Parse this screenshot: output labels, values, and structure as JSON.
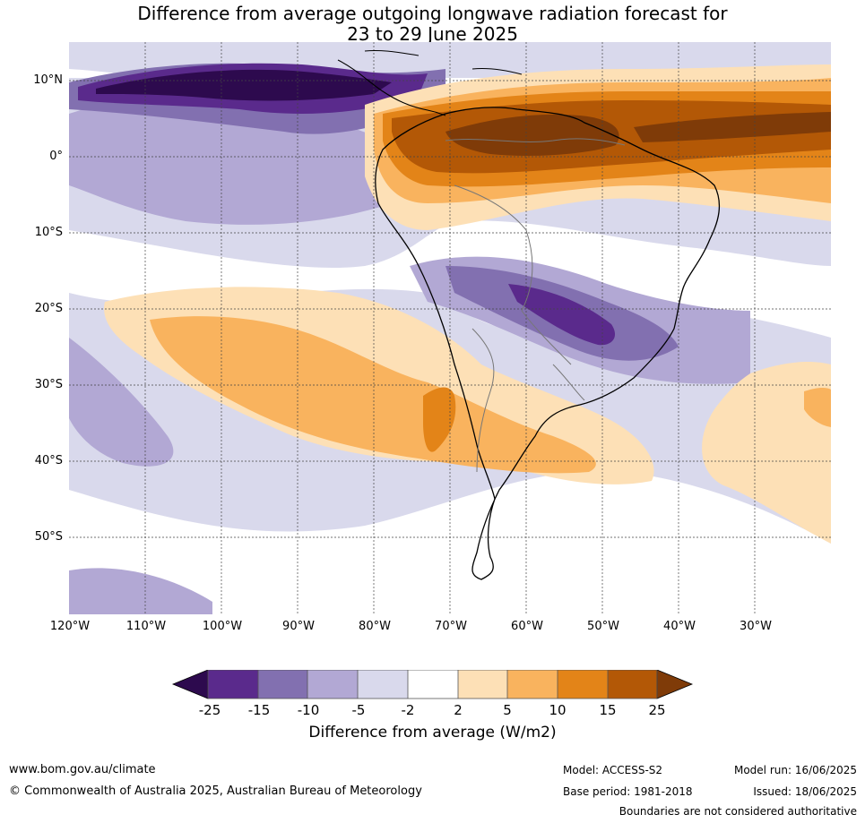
{
  "title": {
    "line1": "Difference from average outgoing longwave radiation forecast for",
    "line2": "23 to 29 June 2025"
  },
  "map": {
    "lat_labels": [
      "10°N",
      "0°",
      "10°S",
      "20°S",
      "30°S",
      "40°S",
      "50°S"
    ],
    "lon_labels": [
      "120°W",
      "110°W",
      "100°W",
      "90°W",
      "80°W",
      "70°W",
      "60°W",
      "50°W",
      "40°W",
      "30°W"
    ],
    "colors": {
      "c_m25": "#2d0a4e",
      "c_m20": "#5a2a8c",
      "c_m15": "#8270b0",
      "c_m10": "#b2a8d4",
      "c_m5": "#d9d9ec",
      "c_0": "#ffffff",
      "c_5": "#fde0b6",
      "c_10": "#f9b35e",
      "c_15": "#e38418",
      "c_20": "#b35806",
      "c_25": "#7f3b08"
    }
  },
  "colorbar": {
    "ticks": [
      "-25",
      "-15",
      "-10",
      "-5",
      "-2",
      "2",
      "5",
      "10",
      "15",
      "25"
    ],
    "label": "Difference from average (W/m2)"
  },
  "footer": {
    "url": "www.bom.gov.au/climate",
    "copyright": "© Commonwealth of Australia 2025, Australian Bureau of Meteorology",
    "model": "Model: ACCESS-S2",
    "base_period": "Base period: 1981-2018",
    "model_run": "Model run: 16/06/2025",
    "issued": "Issued: 18/06/2025",
    "disclaimer": "Boundaries are not considered authoritative"
  }
}
